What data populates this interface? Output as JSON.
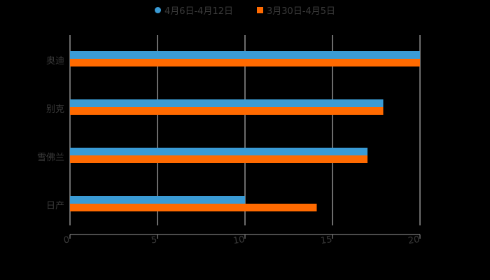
{
  "chart_data": {
    "type": "bar",
    "orientation": "horizontal",
    "title": "",
    "xlabel": "",
    "ylabel": "",
    "categories": [
      "奥迪",
      "别克",
      "雪佛兰",
      "日产"
    ],
    "series": [
      {
        "name": "4月6日-4月12日",
        "color": "#3a9bd5",
        "marker": "circle",
        "values": [
          20,
          17.9,
          17,
          10
        ]
      },
      {
        "name": "3月30日-4月5日",
        "color": "#ff6a00",
        "marker": "square",
        "values": [
          20,
          17.9,
          17,
          14.1
        ]
      }
    ],
    "xlim": [
      0,
      20
    ],
    "xticks": [
      "0",
      "5",
      "10",
      "15",
      "20"
    ],
    "grid": {
      "vertical": true,
      "horizontal": false
    },
    "legend_position": "top",
    "background": "#000000"
  }
}
